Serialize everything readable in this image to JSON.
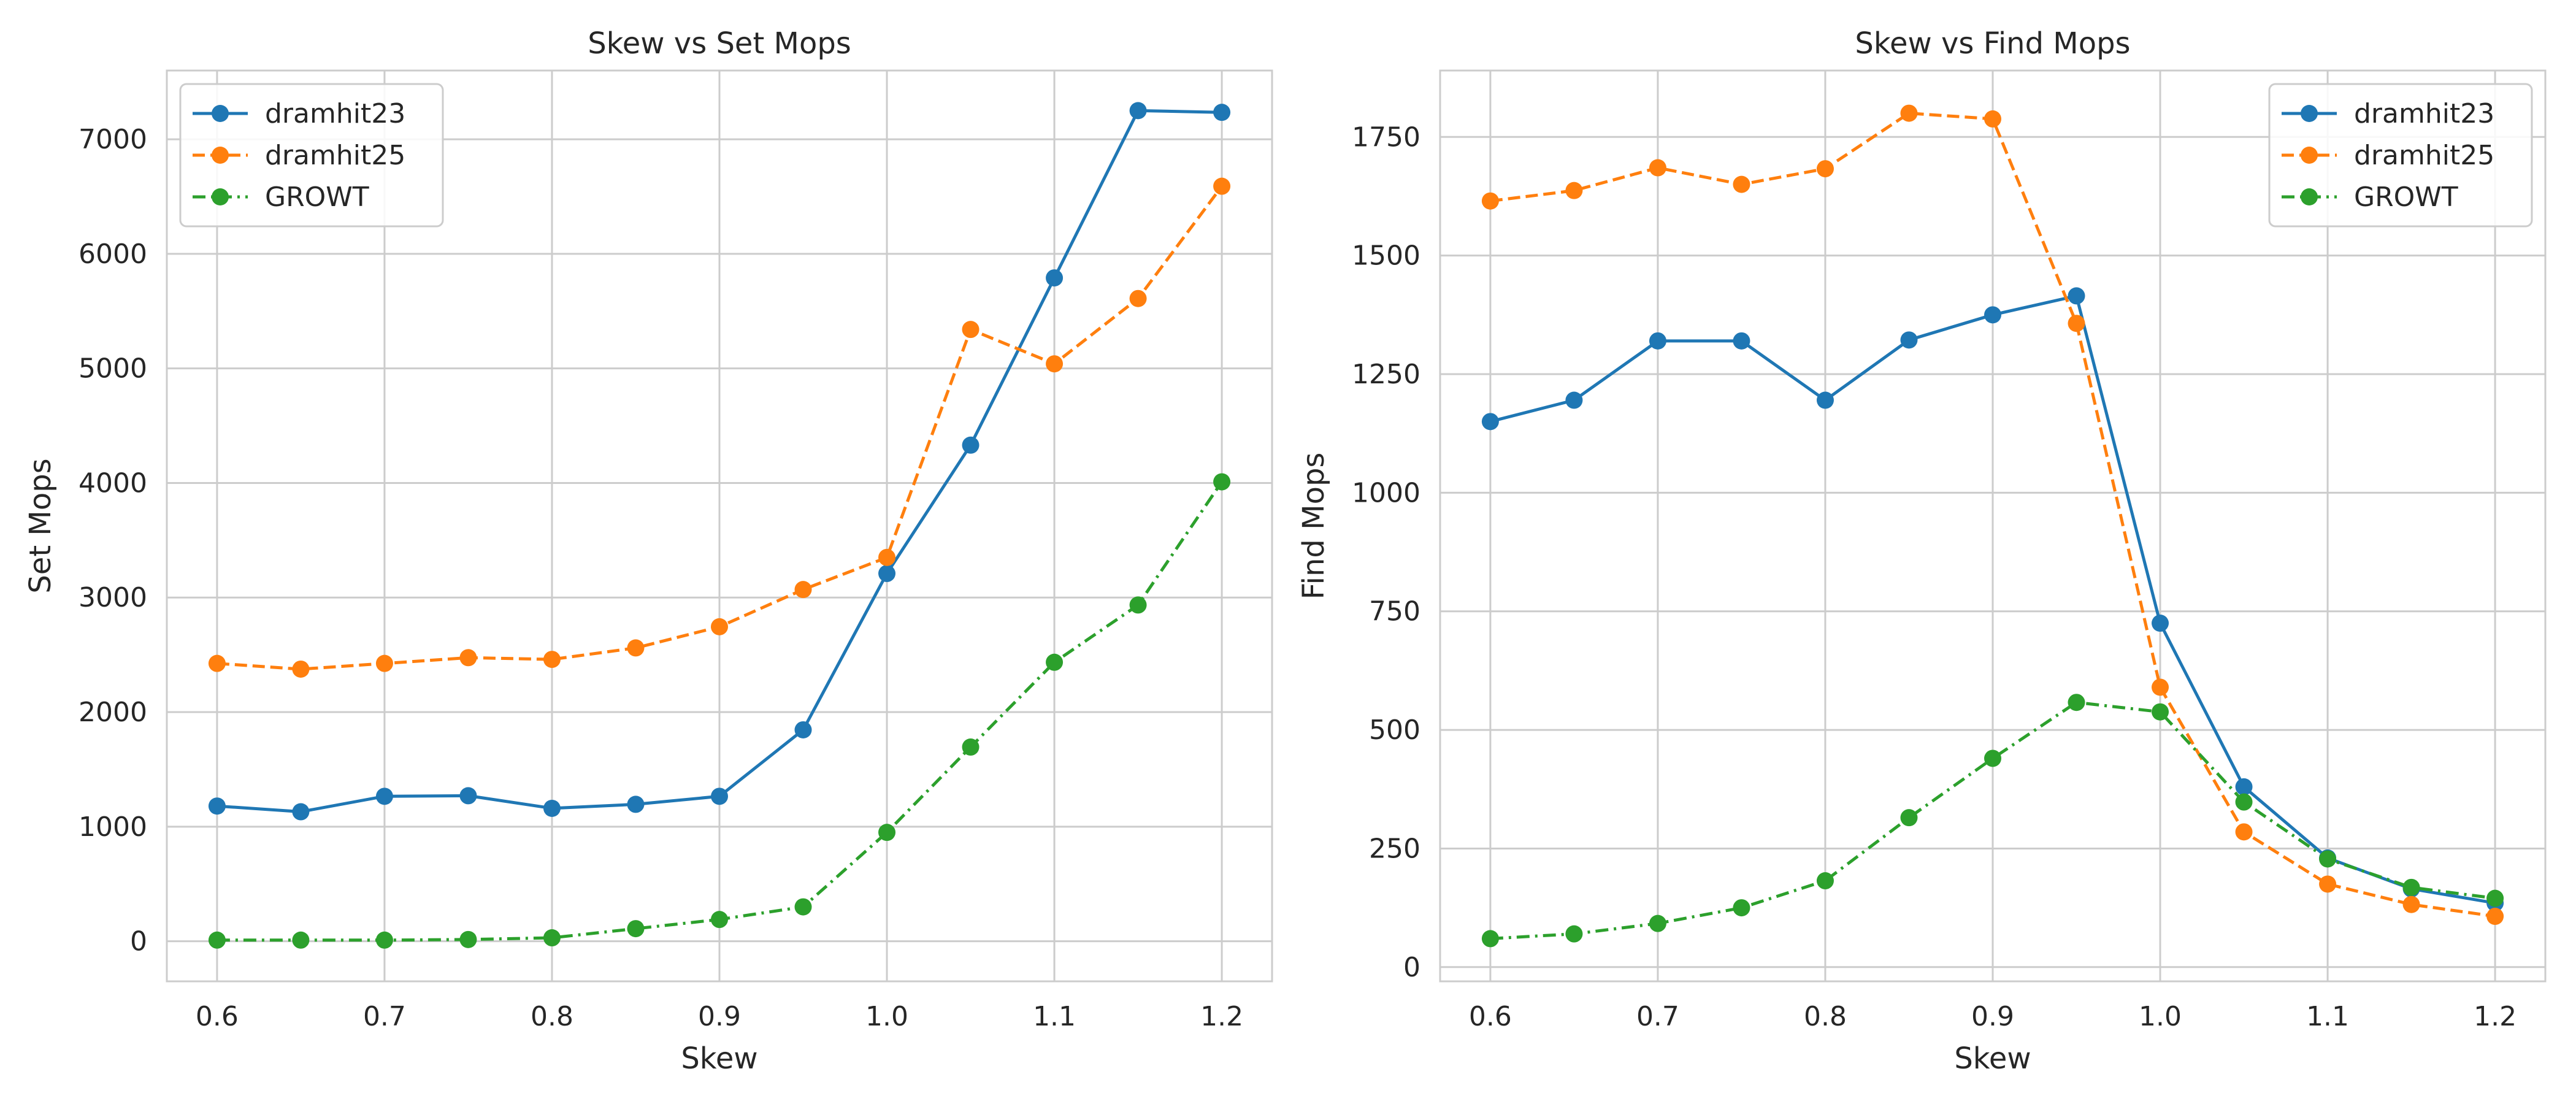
{
  "chart_data": [
    {
      "type": "line",
      "title": "Skew vs Set Mops",
      "xlabel": "Skew",
      "ylabel": "Set Mops",
      "x": [
        0.6,
        0.65,
        0.7,
        0.75,
        0.8,
        0.85,
        0.9,
        0.95,
        1.0,
        1.05,
        1.1,
        1.15,
        1.2
      ],
      "xlim": [
        0.57,
        1.23
      ],
      "ylim": [
        -350,
        7600
      ],
      "xticks": [
        0.6,
        0.7,
        0.8,
        0.9,
        1.0,
        1.1,
        1.2
      ],
      "xtick_labels": [
        "0.6",
        "0.7",
        "0.8",
        "0.9",
        "1.0",
        "1.1",
        "1.2"
      ],
      "yticks": [
        0,
        1000,
        2000,
        3000,
        4000,
        5000,
        6000,
        7000
      ],
      "ytick_labels": [
        "0",
        "1000",
        "2000",
        "3000",
        "4000",
        "5000",
        "6000",
        "7000"
      ],
      "grid": true,
      "legend_position": "top-left",
      "series": [
        {
          "name": "dramhit23",
          "color": "#1f77b4",
          "linestyle": "solid",
          "marker": "circle",
          "values": [
            1180,
            1130,
            1265,
            1270,
            1160,
            1195,
            1265,
            1845,
            3210,
            4330,
            5790,
            7250,
            7235
          ]
        },
        {
          "name": "dramhit25",
          "color": "#ff7f0e",
          "linestyle": "dashed",
          "marker": "circle",
          "values": [
            2425,
            2375,
            2425,
            2475,
            2460,
            2560,
            2745,
            3070,
            3350,
            5340,
            5040,
            5610,
            6590
          ]
        },
        {
          "name": "GROWT",
          "color": "#2ca02c",
          "linestyle": "dashdot",
          "marker": "circle",
          "values": [
            10,
            10,
            10,
            15,
            30,
            110,
            190,
            300,
            950,
            1695,
            2435,
            2935,
            4010
          ]
        }
      ]
    },
    {
      "type": "line",
      "title": "Skew vs Find Mops",
      "xlabel": "Skew",
      "ylabel": "Find Mops",
      "x": [
        0.6,
        0.65,
        0.7,
        0.75,
        0.8,
        0.85,
        0.9,
        0.95,
        1.0,
        1.05,
        1.1,
        1.15,
        1.2
      ],
      "xlim": [
        0.57,
        1.23
      ],
      "ylim": [
        -30,
        1890
      ],
      "xticks": [
        0.6,
        0.7,
        0.8,
        0.9,
        1.0,
        1.1,
        1.2
      ],
      "xtick_labels": [
        "0.6",
        "0.7",
        "0.8",
        "0.9",
        "1.0",
        "1.1",
        "1.2"
      ],
      "yticks": [
        0,
        250,
        500,
        750,
        1000,
        1250,
        1500,
        1750
      ],
      "ytick_labels": [
        "0",
        "250",
        "500",
        "750",
        "1000",
        "1250",
        "1500",
        "1750"
      ],
      "grid": true,
      "legend_position": "top-right",
      "series": [
        {
          "name": "dramhit23",
          "color": "#1f77b4",
          "linestyle": "solid",
          "marker": "circle",
          "values": [
            1150,
            1195,
            1320,
            1320,
            1195,
            1322,
            1375,
            1415,
            725,
            380,
            230,
            165,
            135
          ]
        },
        {
          "name": "dramhit25",
          "color": "#ff7f0e",
          "linestyle": "dashed",
          "marker": "circle",
          "values": [
            1615,
            1637,
            1685,
            1650,
            1683,
            1800,
            1788,
            1357,
            590,
            285,
            175,
            132,
            107
          ]
        },
        {
          "name": "GROWT",
          "color": "#2ca02c",
          "linestyle": "dashdot",
          "marker": "circle",
          "values": [
            60,
            70,
            92,
            125,
            182,
            315,
            440,
            558,
            538,
            348,
            228,
            168,
            145
          ]
        }
      ]
    }
  ]
}
